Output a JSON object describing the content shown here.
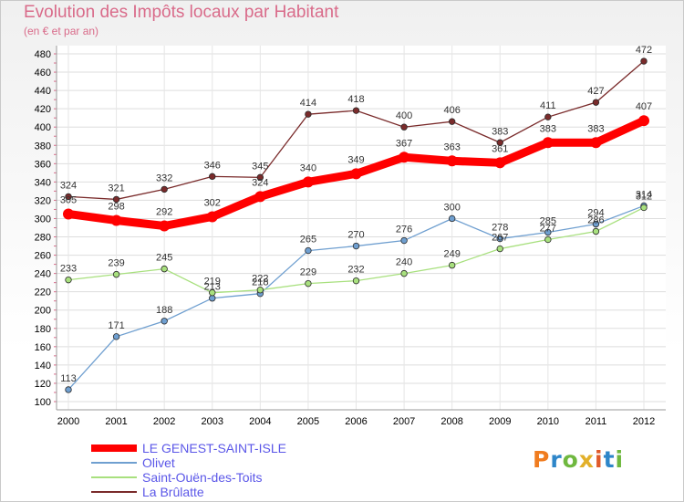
{
  "title": "Evolution des Impôts locaux par Habitant",
  "subtitle": "(en € et par an)",
  "logo": {
    "text": "Proxiti",
    "colors": [
      "#f07c1f",
      "#2e86c9",
      "#6fb83f",
      "#e2b02a",
      "#e05a2a",
      "#2e86c9",
      "#6fb83f"
    ]
  },
  "chart_data": {
    "type": "line",
    "title": "Evolution des Impôts locaux par Habitant",
    "subtitle": "(en € et par an)",
    "x": [
      2000,
      2001,
      2002,
      2003,
      2004,
      2005,
      2006,
      2007,
      2008,
      2009,
      2010,
      2011,
      2012
    ],
    "xlabel": "",
    "ylabel": "",
    "ylim": [
      100,
      480
    ],
    "yticks": [
      100,
      120,
      140,
      160,
      180,
      200,
      220,
      240,
      260,
      280,
      300,
      320,
      340,
      360,
      380,
      400,
      420,
      440,
      460,
      480
    ],
    "grid": true,
    "legend_position": "bottom",
    "series": [
      {
        "name": "LE GENEST-SAINT-ISLE",
        "color": "#ff0000",
        "emphasis": true,
        "values": [
          305,
          298,
          292,
          302,
          324,
          340,
          349,
          367,
          363,
          361,
          383,
          383,
          407
        ]
      },
      {
        "name": "Olivet",
        "color": "#6f9fd0",
        "values": [
          113,
          171,
          188,
          213,
          218,
          265,
          270,
          276,
          300,
          278,
          285,
          294,
          314
        ]
      },
      {
        "name": "Saint-Ouën-des-Toits",
        "color": "#a8e07e",
        "values": [
          233,
          239,
          245,
          219,
          222,
          229,
          232,
          240,
          249,
          267,
          277,
          286,
          312
        ]
      },
      {
        "name": "La Brûlatte",
        "color": "#7a2b2b",
        "values": [
          324,
          321,
          332,
          346,
          345,
          414,
          418,
          400,
          406,
          383,
          411,
          427,
          472
        ]
      }
    ]
  }
}
